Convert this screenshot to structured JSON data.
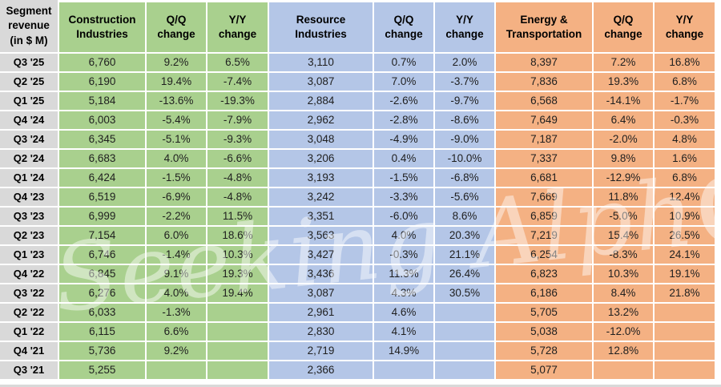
{
  "title": "Segment revenue (in $ M)",
  "header": {
    "corner": "Segment\nrevenue\n(in $ M)",
    "groups": [
      {
        "name": "Construction\nIndustries",
        "qq": "Q/Q\nchange",
        "yy": "Y/Y\nchange"
      },
      {
        "name": "Resource\nIndustries",
        "qq": "Q/Q\nchange",
        "yy": "Y/Y\nchange"
      },
      {
        "name": "Energy &\nTransportation",
        "qq": "Q/Q\nchange",
        "yy": "Y/Y\nchange"
      }
    ]
  },
  "watermark": {
    "text": "Seeking Alph",
    "alpha": "α"
  },
  "colors": {
    "green": "#A9D08E",
    "blue": "#B4C6E7",
    "orange": "#F4B183",
    "gray": "#D9D9D9",
    "text": "#1F1F1F"
  },
  "chart_data": {
    "type": "table",
    "title": "Segment revenue (in $ M)",
    "columns": [
      "Quarter",
      "Construction Industries",
      "Q/Q change",
      "Y/Y change",
      "Resource Industries",
      "Q/Q change",
      "Y/Y change",
      "Energy & Transportation",
      "Q/Q change",
      "Y/Y change"
    ],
    "rows": [
      [
        "Q3 '25",
        "6,760",
        "9.2%",
        "6.5%",
        "3,110",
        "0.7%",
        "2.0%",
        "8,397",
        "7.2%",
        "16.8%"
      ],
      [
        "Q2 '25",
        "6,190",
        "19.4%",
        "-7.4%",
        "3,087",
        "7.0%",
        "-3.7%",
        "7,836",
        "19.3%",
        "6.8%"
      ],
      [
        "Q1 '25",
        "5,184",
        "-13.6%",
        "-19.3%",
        "2,884",
        "-2.6%",
        "-9.7%",
        "6,568",
        "-14.1%",
        "-1.7%"
      ],
      [
        "Q4 '24",
        "6,003",
        "-5.4%",
        "-7.9%",
        "2,962",
        "-2.8%",
        "-8.6%",
        "7,649",
        "6.4%",
        "-0.3%"
      ],
      [
        "Q3 '24",
        "6,345",
        "-5.1%",
        "-9.3%",
        "3,048",
        "-4.9%",
        "-9.0%",
        "7,187",
        "-2.0%",
        "4.8%"
      ],
      [
        "Q2 '24",
        "6,683",
        "4.0%",
        "-6.6%",
        "3,206",
        "0.4%",
        "-10.0%",
        "7,337",
        "9.8%",
        "1.6%"
      ],
      [
        "Q1 '24",
        "6,424",
        "-1.5%",
        "-4.8%",
        "3,193",
        "-1.5%",
        "-6.8%",
        "6,681",
        "-12.9%",
        "6.8%"
      ],
      [
        "Q4 '23",
        "6,519",
        "-6.9%",
        "-4.8%",
        "3,242",
        "-3.3%",
        "-5.6%",
        "7,669",
        "11.8%",
        "12.4%"
      ],
      [
        "Q3 '23",
        "6,999",
        "-2.2%",
        "11.5%",
        "3,351",
        "-6.0%",
        "8.6%",
        "6,859",
        "-5.0%",
        "10.9%"
      ],
      [
        "Q2 '23",
        "7,154",
        "6.0%",
        "18.6%",
        "3,563",
        "4.0%",
        "20.3%",
        "7,219",
        "15.4%",
        "26.5%"
      ],
      [
        "Q1 '23",
        "6,746",
        "-1.4%",
        "10.3%",
        "3,427",
        "-0.3%",
        "21.1%",
        "6,254",
        "-8.3%",
        "24.1%"
      ],
      [
        "Q4 '22",
        "6,845",
        "9.1%",
        "19.3%",
        "3,436",
        "11.3%",
        "26.4%",
        "6,823",
        "10.3%",
        "19.1%"
      ],
      [
        "Q3 '22",
        "6,276",
        "4.0%",
        "19.4%",
        "3,087",
        "4.3%",
        "30.5%",
        "6,186",
        "8.4%",
        "21.8%"
      ],
      [
        "Q2 '22",
        "6,033",
        "-1.3%",
        "",
        "2,961",
        "4.6%",
        "",
        "5,705",
        "13.2%",
        ""
      ],
      [
        "Q1 '22",
        "6,115",
        "6.6%",
        "",
        "2,830",
        "4.1%",
        "",
        "5,038",
        "-12.0%",
        ""
      ],
      [
        "Q4 '21",
        "5,736",
        "9.2%",
        "",
        "2,719",
        "14.9%",
        "",
        "5,728",
        "12.8%",
        ""
      ],
      [
        "Q3 '21",
        "5,255",
        "",
        "",
        "2,366",
        "",
        "",
        "5,077",
        "",
        ""
      ]
    ]
  }
}
